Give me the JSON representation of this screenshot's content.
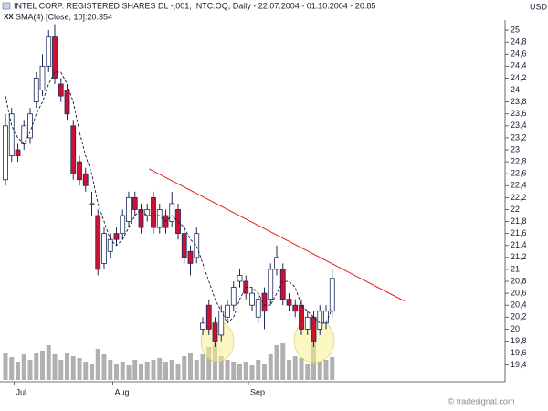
{
  "chart_data": {
    "type": "candlestick",
    "title": "INTEL CORP. REGISTERED SHARES DL -,001, INTC.OQ, Daily - 22.07.2004 - 01.10.2004 - 20.85",
    "subtitle": "SMA(4) [Close, 10]:20.354",
    "currency": "USD",
    "credit": "© tradesignal.com",
    "categories": [
      null,
      null,
      "Jul",
      null,
      null,
      null,
      null,
      null,
      null,
      null,
      null,
      null,
      null,
      null,
      null,
      null,
      null,
      null,
      "Aug",
      null,
      null,
      null,
      null,
      null,
      null,
      null,
      null,
      null,
      null,
      null,
      null,
      null,
      null,
      null,
      null,
      null,
      null,
      null,
      null,
      null,
      "Sep",
      null,
      null,
      null,
      null,
      null,
      null,
      null,
      null,
      null,
      null,
      null,
      null,
      null
    ],
    "open": [
      22.5,
      22.9,
      23.0,
      23.1,
      23.2,
      23.8,
      24.0,
      24.4,
      24.9,
      24.1,
      24.0,
      23.4,
      22.8,
      22.6,
      22.1,
      21.9,
      21.1,
      21.3,
      21.6,
      21.6,
      21.8,
      22.2,
      22.0,
      21.9,
      22.2,
      21.7,
      21.9,
      21.8,
      22.0,
      21.6,
      21.3,
      21.2,
      20.0,
      20.4,
      20.1,
      19.9,
      20.2,
      20.4,
      20.8,
      20.8,
      20.4,
      20.2,
      20.6,
      20.5,
      21.0,
      21.0,
      20.5,
      20.4,
      20.4,
      20.0,
      20.2,
      20.0,
      20.1,
      20.3
    ],
    "high": [
      23.6,
      23.7,
      23.1,
      23.5,
      23.7,
      24.3,
      24.6,
      25.0,
      25.1,
      24.2,
      24.1,
      23.5,
      22.9,
      22.7,
      22.3,
      22.0,
      21.7,
      21.6,
      21.7,
      22.0,
      22.3,
      22.3,
      22.1,
      22.1,
      22.3,
      22.1,
      22.0,
      22.3,
      22.1,
      21.7,
      21.4,
      21.7,
      20.2,
      20.5,
      20.2,
      20.4,
      20.5,
      20.8,
      21.0,
      20.9,
      20.7,
      20.6,
      20.7,
      21.1,
      21.4,
      21.1,
      20.6,
      20.5,
      20.5,
      20.3,
      20.3,
      20.4,
      20.4,
      21.0
    ],
    "low": [
      22.4,
      22.8,
      22.8,
      23.0,
      23.1,
      23.7,
      23.9,
      24.3,
      24.1,
      23.8,
      23.5,
      22.5,
      22.4,
      22.3,
      21.9,
      20.9,
      21.0,
      21.2,
      21.4,
      21.5,
      21.7,
      21.9,
      21.6,
      21.8,
      21.6,
      21.6,
      21.6,
      21.7,
      21.5,
      21.1,
      20.9,
      21.1,
      19.9,
      19.9,
      19.7,
      19.8,
      20.1,
      20.3,
      20.7,
      20.5,
      20.3,
      20.1,
      20.0,
      20.4,
      20.9,
      20.4,
      20.3,
      20.2,
      19.9,
      19.9,
      19.7,
      19.9,
      20.0,
      20.2
    ],
    "close": [
      23.4,
      23.6,
      22.9,
      23.4,
      23.6,
      24.2,
      24.4,
      24.9,
      24.2,
      23.9,
      23.6,
      22.6,
      22.5,
      22.4,
      22.1,
      21.0,
      21.6,
      21.5,
      21.5,
      21.9,
      22.2,
      22.0,
      21.7,
      22.0,
      21.7,
      22.0,
      21.7,
      22.1,
      21.6,
      21.2,
      21.1,
      21.6,
      20.1,
      20.0,
      19.8,
      20.3,
      20.4,
      20.7,
      20.9,
      20.6,
      20.6,
      20.5,
      20.3,
      21.0,
      21.2,
      20.5,
      20.4,
      20.3,
      20.0,
      20.2,
      19.8,
      20.3,
      20.3,
      20.85
    ],
    "sma": {
      "color": "#1a1a2e",
      "values": [
        23.9,
        23.4,
        23.2,
        23.1,
        23.3,
        23.6,
        23.8,
        24.1,
        24.3,
        24.3,
        24.1,
        23.8,
        23.3,
        22.9,
        22.6,
        22.1,
        21.8,
        21.5,
        21.4,
        21.5,
        21.7,
        21.9,
        22.0,
        21.9,
        21.9,
        21.9,
        21.8,
        21.9,
        21.8,
        21.7,
        21.5,
        21.4,
        21.1,
        20.8,
        20.5,
        20.3,
        20.1,
        20.2,
        20.5,
        20.7,
        20.7,
        20.6,
        20.4,
        20.4,
        20.6,
        20.8,
        20.8,
        20.7,
        20.4,
        20.3,
        20.2,
        20.1,
        20.1,
        20.354
      ]
    },
    "volume": [
      30,
      25,
      20,
      28,
      22,
      30,
      32,
      38,
      28,
      22,
      30,
      26,
      24,
      20,
      18,
      34,
      28,
      22,
      18,
      20,
      16,
      22,
      18,
      20,
      22,
      24,
      20,
      22,
      18,
      26,
      30,
      22,
      28,
      36,
      40,
      26,
      22,
      20,
      18,
      20,
      16,
      22,
      18,
      28,
      38,
      40,
      22,
      26,
      24,
      18,
      42,
      20,
      22,
      25
    ],
    "up_color": "#ffffff",
    "down_color": "#cc1133",
    "volume_color": "#b0b0b0",
    "trendline": {
      "x": [
        23.3,
        64.7
      ],
      "y": [
        22.68,
        20.47
      ],
      "color": "#e02020"
    },
    "ylim": [
      19.12,
      25.2
    ],
    "yticks": [
      {
        "value": 19.4,
        "label": "19,4"
      },
      {
        "value": 19.6,
        "label": "19,6"
      },
      {
        "value": 19.8,
        "label": "19,8"
      },
      20,
      {
        "value": 20.2,
        "label": "20,2"
      },
      {
        "value": 20.4,
        "label": "20,4"
      },
      {
        "value": 20.6,
        "label": "20,6"
      },
      {
        "value": 20.8,
        "label": "20,8"
      },
      21,
      {
        "value": 21.2,
        "label": "21,2"
      },
      {
        "value": 21.4,
        "label": "21,4"
      },
      {
        "value": 21.6,
        "label": "21,6"
      },
      {
        "value": 21.8,
        "label": "21,8"
      },
      22,
      {
        "value": 22.2,
        "label": "22,2"
      },
      {
        "value": 22.4,
        "label": "22,4"
      },
      {
        "value": 22.6,
        "label": "22,6"
      },
      {
        "value": 22.8,
        "label": "22,8"
      },
      23,
      {
        "value": 23.2,
        "label": "23,2"
      },
      {
        "value": 23.4,
        "label": "23,4"
      },
      {
        "value": 23.6,
        "label": "23,6"
      },
      {
        "value": 23.8,
        "label": "23,8"
      },
      24,
      {
        "value": 24.2,
        "label": "24,2"
      },
      {
        "value": 24.4,
        "label": "24,4"
      },
      {
        "value": 24.6,
        "label": "24,6"
      },
      {
        "value": 24.8,
        "label": "24,8"
      },
      25
    ]
  }
}
